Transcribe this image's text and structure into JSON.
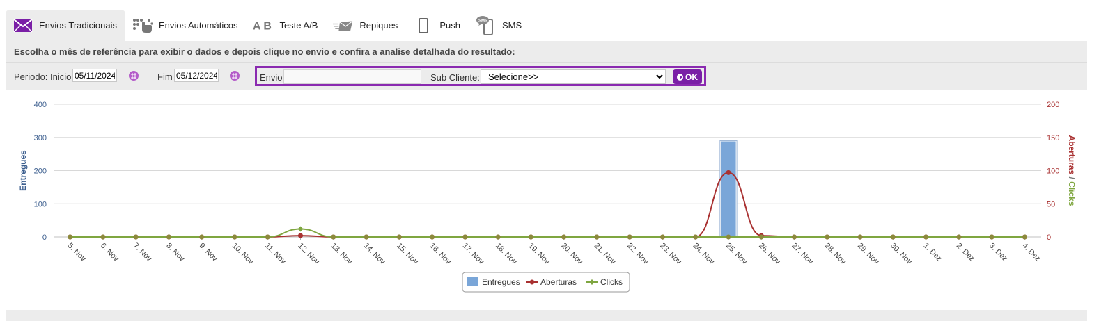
{
  "tabs": [
    {
      "label": "Envios Tradicionais",
      "icon": "envelope-icon",
      "active": true
    },
    {
      "label": "Envios Automáticos",
      "icon": "pointer-hand-icon",
      "active": false
    },
    {
      "label": "Teste A/B",
      "icon": "ab-icon",
      "active": false
    },
    {
      "label": "Repiques",
      "icon": "fast-mail-icon",
      "active": false
    },
    {
      "label": "Push",
      "icon": "mobile-icon",
      "active": false
    },
    {
      "label": "SMS",
      "icon": "sms-phone-icon",
      "active": false
    }
  ],
  "instructions": "Escolha o mês de referência para exibir o dados e depois clique no envio e confira a analise detalhada do resultado:",
  "filters": {
    "periodo_label": "Periodo: Inicio",
    "inicio_value": "05/11/2024",
    "fim_label": "Fim",
    "fim_value": "05/12/2024",
    "envio_label": "Envio",
    "envio_value": "",
    "subcliente_label": "Sub Cliente:",
    "subcliente_selected": "Selecione>>",
    "ok_label": "OK"
  },
  "colors": {
    "accent": "#7a1fa6",
    "entregues": "#7aa6d8",
    "aberturas": "#a93131",
    "clicks": "#7fa640"
  },
  "chart_data": {
    "type": "bar",
    "categories": [
      "5. Nov",
      "6. Nov",
      "7. Nov",
      "8. Nov",
      "9. Nov",
      "10. Nov",
      "11. Nov",
      "12. Nov",
      "13. Nov",
      "14. Nov",
      "15. Nov",
      "16. Nov",
      "17. Nov",
      "18. Nov",
      "19. Nov",
      "20. Nov",
      "21. Nov",
      "22. Nov",
      "23. Nov",
      "24. Nov",
      "25. Nov",
      "26. Nov",
      "27. Nov",
      "28. Nov",
      "29. Nov",
      "30. Nov",
      "1. Dez",
      "2. Dez",
      "3. Dez",
      "4. Dez"
    ],
    "series": [
      {
        "name": "Entregues",
        "type": "bar",
        "axis": "left",
        "values": [
          0,
          0,
          0,
          0,
          0,
          0,
          0,
          0,
          0,
          0,
          0,
          0,
          0,
          0,
          0,
          0,
          0,
          0,
          0,
          0,
          288,
          0,
          0,
          0,
          0,
          0,
          0,
          0,
          0,
          0
        ]
      },
      {
        "name": "Aberturas",
        "type": "spline",
        "axis": "right",
        "values": [
          0,
          0,
          0,
          0,
          0,
          0,
          0,
          2,
          0,
          0,
          0,
          0,
          0,
          0,
          0,
          0,
          0,
          0,
          0,
          0,
          97,
          2,
          0,
          0,
          0,
          0,
          0,
          0,
          0,
          0
        ]
      },
      {
        "name": "Clicks",
        "type": "spline",
        "axis": "right",
        "values": [
          0,
          0,
          0,
          0,
          0,
          0,
          0,
          12,
          0,
          0,
          0,
          0,
          0,
          0,
          0,
          0,
          0,
          0,
          0,
          0,
          0,
          0,
          0,
          0,
          0,
          0,
          0,
          0,
          0,
          0
        ]
      }
    ],
    "ylabel_left": "Entregues",
    "ylabel_right_a": "Aberturas",
    "ylabel_right_sep": "/",
    "ylabel_right_b": "Clicks",
    "ylim_left": [
      0,
      400
    ],
    "ylim_right": [
      0,
      200
    ],
    "yticks_left": [
      0,
      100,
      200,
      300,
      400
    ],
    "yticks_right": [
      0,
      50,
      100,
      150,
      200
    ],
    "grid": true,
    "legend": "bottom-center"
  }
}
